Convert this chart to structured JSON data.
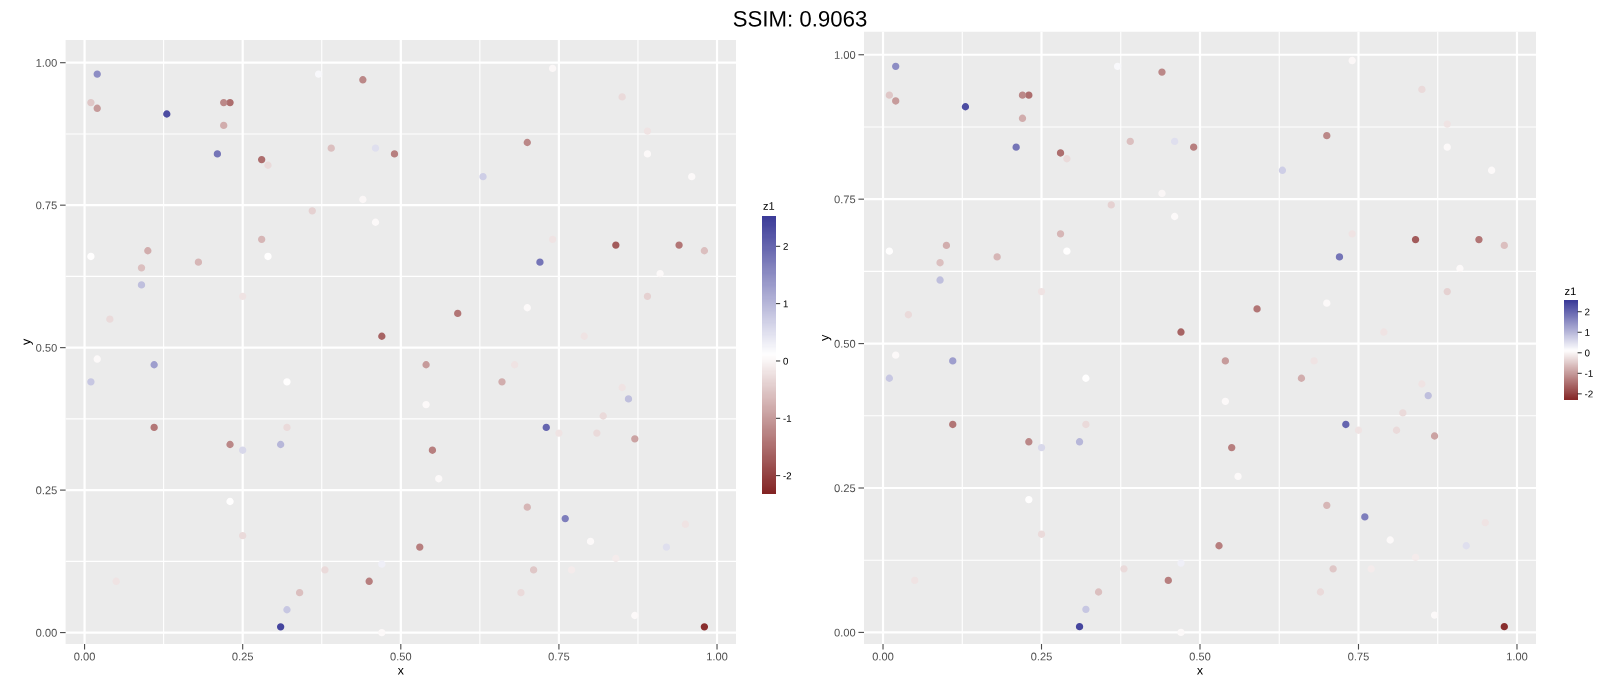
{
  "chart_data": [
    {
      "type": "scatter",
      "title": "SSIM: 0.9063",
      "xlabel": "x",
      "ylabel": "y",
      "clabel": "z1",
      "x": [
        0.02,
        0.01,
        0.02,
        0.13,
        0.23,
        0.22,
        0.22,
        0.21,
        0.28,
        0.29,
        0.37,
        0.44,
        0.39,
        0.46,
        0.49,
        0.36,
        0.44,
        0.46,
        0.28,
        0.29,
        0.01,
        0.1,
        0.09,
        0.09,
        0.18,
        0.25,
        0.04,
        0.47,
        0.02,
        0.11,
        0.01,
        0.32,
        0.11,
        0.32,
        0.23,
        0.31,
        0.25,
        0.23,
        0.25,
        0.05,
        0.38,
        0.47,
        0.45,
        0.34,
        0.32,
        0.31,
        0.47,
        0.74,
        0.85,
        0.89,
        0.89,
        0.96,
        0.7,
        0.63,
        0.74,
        0.84,
        0.94,
        0.98,
        0.72,
        0.91,
        0.89,
        0.7,
        0.59,
        0.79,
        0.54,
        0.68,
        0.66,
        0.85,
        0.86,
        0.54,
        0.82,
        0.73,
        0.75,
        0.81,
        0.87,
        0.55,
        0.56,
        0.7,
        0.76,
        0.95,
        0.8,
        0.92,
        0.53,
        0.71,
        0.84,
        0.77,
        0.69,
        0.87,
        0.98
      ],
      "values": [
        0.98,
        0.93,
        0.92,
        0.91,
        0.93,
        0.93,
        0.89,
        0.84,
        0.83,
        0.82,
        0.98,
        0.97,
        0.85,
        0.85,
        0.84,
        0.74,
        0.76,
        0.72,
        0.69,
        0.66,
        0.66,
        0.67,
        0.64,
        0.61,
        0.65,
        0.59,
        0.55,
        0.52,
        0.48,
        0.47,
        0.44,
        0.44,
        0.36,
        0.36,
        0.33,
        0.33,
        0.32,
        0.23,
        0.17,
        0.09,
        0.11,
        0.12,
        0.09,
        0.07,
        0.04,
        0.01,
        0.0,
        0.99,
        0.94,
        0.88,
        0.84,
        0.8,
        0.86,
        0.8,
        0.69,
        0.68,
        0.68,
        0.67,
        0.65,
        0.63,
        0.59,
        0.57,
        0.56,
        0.52,
        0.47,
        0.47,
        0.44,
        0.43,
        0.41,
        0.4,
        0.38,
        0.36,
        0.35,
        0.35,
        0.34,
        0.32,
        0.27,
        0.22,
        0.2,
        0.19,
        0.16,
        0.15,
        0.15,
        0.11,
        0.13,
        0.11,
        0.07,
        0.03,
        0.01
      ],
      "cvalues": [
        1.5,
        -0.5,
        -1,
        2.3,
        -1.5,
        -1.2,
        -0.8,
        1.8,
        -1.5,
        -0.3,
        0.2,
        -1.2,
        -0.6,
        0.5,
        -1.3,
        -0.4,
        0,
        0.05,
        -0.7,
        0.1,
        0.1,
        -0.8,
        -0.6,
        0.9,
        -0.7,
        -0.2,
        -0.3,
        -1.6,
        0.05,
        1.3,
        0.8,
        0.1,
        -1.4,
        -0.3,
        -1.2,
        1.0,
        0.6,
        0.1,
        -0.3,
        -0.2,
        -0.3,
        0.3,
        -1.3,
        -0.6,
        0.8,
        2.4,
        0.05,
        0.02,
        -0.3,
        -0.2,
        0.05,
        0.05,
        -1.2,
        0.7,
        -0.2,
        -1.7,
        -1.4,
        -0.6,
        1.8,
        0.05,
        -0.4,
        0.05,
        -1.4,
        -0.2,
        -1.0,
        -0.2,
        -0.8,
        -0.2,
        0.9,
        0.05,
        -0.3,
        2.0,
        -0.2,
        -0.3,
        -0.9,
        -1.3,
        0.05,
        -0.7,
        1.7,
        -0.2,
        0.05,
        0.5,
        -1.3,
        -0.5,
        -0.1,
        -0.1,
        -0.3,
        0.05,
        -2.2
      ],
      "clim": [
        -2.32,
        2.54
      ],
      "cticks": [
        -2,
        -1,
        0,
        1,
        2
      ],
      "xlim": [
        -0.03,
        1.03
      ],
      "ylim": [
        -0.02,
        1.04
      ],
      "xticks": [
        {
          "value": 0,
          "label": "0.00"
        },
        {
          "value": 0.25,
          "label": "0.25"
        },
        {
          "value": 0.5,
          "label": "0.50"
        },
        {
          "value": 0.75,
          "label": "0.75"
        },
        {
          "value": 1,
          "label": "1.00"
        }
      ],
      "yticks": [
        {
          "value": 0,
          "label": "0.00"
        },
        {
          "value": 0.25,
          "label": "0.25"
        },
        {
          "value": 0.5,
          "label": "0.50"
        },
        {
          "value": 0.75,
          "label": "0.75"
        },
        {
          "value": 1,
          "label": "1.00"
        }
      ],
      "grid": true,
      "marker": "circle"
    },
    {
      "type": "scatter",
      "xlabel": "x",
      "ylabel": "y",
      "clabel": "z1",
      "x": [
        0.02,
        0.01,
        0.02,
        0.13,
        0.23,
        0.22,
        0.22,
        0.21,
        0.28,
        0.29,
        0.37,
        0.44,
        0.39,
        0.46,
        0.49,
        0.36,
        0.44,
        0.46,
        0.28,
        0.29,
        0.01,
        0.1,
        0.09,
        0.09,
        0.18,
        0.25,
        0.04,
        0.47,
        0.02,
        0.11,
        0.01,
        0.32,
        0.11,
        0.32,
        0.23,
        0.31,
        0.25,
        0.23,
        0.25,
        0.05,
        0.38,
        0.47,
        0.45,
        0.34,
        0.32,
        0.31,
        0.47,
        0.74,
        0.85,
        0.89,
        0.89,
        0.96,
        0.7,
        0.63,
        0.74,
        0.84,
        0.94,
        0.98,
        0.72,
        0.91,
        0.89,
        0.7,
        0.59,
        0.79,
        0.54,
        0.68,
        0.66,
        0.85,
        0.86,
        0.54,
        0.82,
        0.73,
        0.75,
        0.81,
        0.87,
        0.55,
        0.56,
        0.7,
        0.76,
        0.95,
        0.8,
        0.92,
        0.53,
        0.71,
        0.84,
        0.77,
        0.69,
        0.87,
        0.98
      ],
      "values": [
        0.98,
        0.93,
        0.92,
        0.91,
        0.93,
        0.93,
        0.89,
        0.84,
        0.83,
        0.82,
        0.98,
        0.97,
        0.85,
        0.85,
        0.84,
        0.74,
        0.76,
        0.72,
        0.69,
        0.66,
        0.66,
        0.67,
        0.64,
        0.61,
        0.65,
        0.59,
        0.55,
        0.52,
        0.48,
        0.47,
        0.44,
        0.44,
        0.36,
        0.36,
        0.33,
        0.33,
        0.32,
        0.23,
        0.17,
        0.09,
        0.11,
        0.12,
        0.09,
        0.07,
        0.04,
        0.01,
        0.0,
        0.99,
        0.94,
        0.88,
        0.84,
        0.8,
        0.86,
        0.8,
        0.69,
        0.68,
        0.68,
        0.67,
        0.65,
        0.63,
        0.59,
        0.57,
        0.56,
        0.52,
        0.47,
        0.47,
        0.44,
        0.43,
        0.41,
        0.4,
        0.38,
        0.36,
        0.35,
        0.35,
        0.34,
        0.32,
        0.27,
        0.22,
        0.2,
        0.19,
        0.16,
        0.15,
        0.15,
        0.11,
        0.13,
        0.11,
        0.07,
        0.03,
        0.01
      ],
      "cvalues": [
        1.5,
        -0.5,
        -1,
        2.3,
        -1.5,
        -1.2,
        -0.8,
        1.8,
        -1.5,
        -0.3,
        0.2,
        -1.2,
        -0.6,
        0.5,
        -1.3,
        -0.4,
        0,
        0.05,
        -0.7,
        0.1,
        0.1,
        -0.8,
        -0.6,
        0.9,
        -0.7,
        -0.2,
        -0.3,
        -1.6,
        0.05,
        1.3,
        0.8,
        0.1,
        -1.4,
        -0.3,
        -1.2,
        1.0,
        0.6,
        0.1,
        -0.3,
        -0.2,
        -0.3,
        0.3,
        -1.3,
        -0.6,
        0.8,
        2.4,
        0.05,
        0.02,
        -0.3,
        -0.2,
        0.05,
        0.05,
        -1.2,
        0.7,
        -0.2,
        -1.7,
        -1.4,
        -0.6,
        1.8,
        0.05,
        -0.4,
        0.05,
        -1.4,
        -0.2,
        -1.0,
        -0.2,
        -0.8,
        -0.2,
        0.9,
        0.05,
        -0.3,
        2.0,
        -0.2,
        -0.3,
        -0.9,
        -1.3,
        0.05,
        -0.7,
        1.7,
        -0.2,
        0.05,
        0.5,
        -1.3,
        -0.5,
        -0.1,
        -0.1,
        -0.3,
        0.05,
        -2.2
      ],
      "clim": [
        -2.32,
        2.54
      ],
      "cticks": [
        -2,
        -1,
        0,
        1,
        2
      ],
      "xlim": [
        -0.03,
        1.03
      ],
      "ylim": [
        -0.02,
        1.04
      ],
      "xticks": [
        {
          "value": 0,
          "label": "0.00"
        },
        {
          "value": 0.25,
          "label": "0.25"
        },
        {
          "value": 0.5,
          "label": "0.50"
        },
        {
          "value": 0.75,
          "label": "0.75"
        },
        {
          "value": 1,
          "label": "1.00"
        }
      ],
      "yticks": [
        {
          "value": 0,
          "label": "0.00"
        },
        {
          "value": 0.25,
          "label": "0.25"
        },
        {
          "value": 0.5,
          "label": "0.50"
        },
        {
          "value": 0.75,
          "label": "0.75"
        },
        {
          "value": 1,
          "label": "1.00"
        }
      ],
      "grid": true,
      "marker": "circle"
    }
  ]
}
